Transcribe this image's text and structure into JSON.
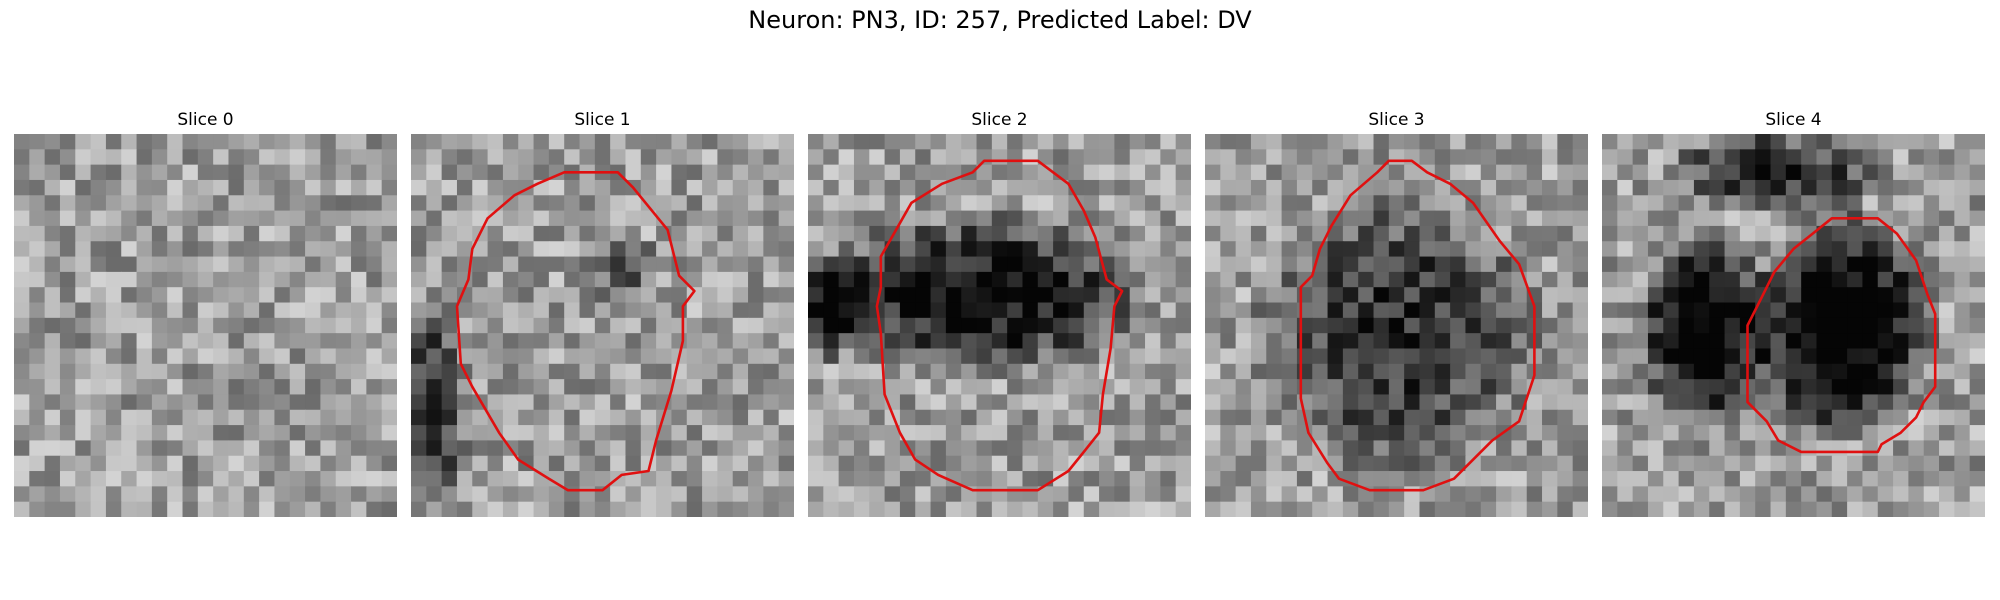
{
  "figure": {
    "title": "Neuron: PN3, ID: 257, Predicted Label: DV"
  },
  "panels": [
    {
      "title": "Slice 0",
      "has_contour": false,
      "seed": 11,
      "dark_blobs": []
    },
    {
      "title": "Slice 1",
      "has_contour": true,
      "seed": 23,
      "dark_blobs": [
        [
          0.06,
          0.72,
          0.08,
          0.25,
          0.45
        ],
        [
          0.55,
          0.35,
          0.1,
          0.08,
          0.25
        ]
      ],
      "contour": [
        [
          0.4,
          0.1
        ],
        [
          0.54,
          0.1
        ],
        [
          0.58,
          0.14
        ],
        [
          0.67,
          0.25
        ],
        [
          0.7,
          0.37
        ],
        [
          0.74,
          0.41
        ],
        [
          0.71,
          0.45
        ],
        [
          0.71,
          0.54
        ],
        [
          0.68,
          0.67
        ],
        [
          0.64,
          0.8
        ],
        [
          0.62,
          0.88
        ],
        [
          0.55,
          0.89
        ],
        [
          0.5,
          0.93
        ],
        [
          0.41,
          0.93
        ],
        [
          0.36,
          0.9
        ],
        [
          0.28,
          0.85
        ],
        [
          0.23,
          0.78
        ],
        [
          0.16,
          0.66
        ],
        [
          0.13,
          0.6
        ],
        [
          0.12,
          0.45
        ],
        [
          0.15,
          0.38
        ],
        [
          0.16,
          0.3
        ],
        [
          0.2,
          0.22
        ],
        [
          0.27,
          0.16
        ],
        [
          0.33,
          0.13
        ]
      ]
    },
    {
      "title": "Slice 2",
      "has_contour": true,
      "seed": 37,
      "dark_blobs": [
        [
          0.45,
          0.42,
          0.38,
          0.18,
          0.6
        ],
        [
          0.05,
          0.45,
          0.1,
          0.12,
          0.55
        ]
      ],
      "contour": [
        [
          0.46,
          0.07
        ],
        [
          0.6,
          0.07
        ],
        [
          0.68,
          0.13
        ],
        [
          0.72,
          0.2
        ],
        [
          0.75,
          0.27
        ],
        [
          0.78,
          0.38
        ],
        [
          0.82,
          0.41
        ],
        [
          0.8,
          0.45
        ],
        [
          0.79,
          0.56
        ],
        [
          0.77,
          0.68
        ],
        [
          0.76,
          0.78
        ],
        [
          0.72,
          0.83
        ],
        [
          0.68,
          0.88
        ],
        [
          0.6,
          0.93
        ],
        [
          0.43,
          0.93
        ],
        [
          0.34,
          0.89
        ],
        [
          0.28,
          0.85
        ],
        [
          0.24,
          0.78
        ],
        [
          0.2,
          0.68
        ],
        [
          0.19,
          0.52
        ],
        [
          0.18,
          0.45
        ],
        [
          0.19,
          0.4
        ],
        [
          0.19,
          0.32
        ],
        [
          0.23,
          0.25
        ],
        [
          0.27,
          0.18
        ],
        [
          0.35,
          0.13
        ],
        [
          0.43,
          0.1
        ]
      ]
    },
    {
      "title": "Slice 3",
      "has_contour": true,
      "seed": 53,
      "dark_blobs": [
        [
          0.5,
          0.52,
          0.32,
          0.32,
          0.45
        ]
      ],
      "contour": [
        [
          0.48,
          0.07
        ],
        [
          0.54,
          0.07
        ],
        [
          0.58,
          0.1
        ],
        [
          0.64,
          0.13
        ],
        [
          0.7,
          0.18
        ],
        [
          0.77,
          0.28
        ],
        [
          0.82,
          0.34
        ],
        [
          0.86,
          0.45
        ],
        [
          0.86,
          0.63
        ],
        [
          0.82,
          0.75
        ],
        [
          0.75,
          0.8
        ],
        [
          0.65,
          0.9
        ],
        [
          0.57,
          0.93
        ],
        [
          0.43,
          0.93
        ],
        [
          0.35,
          0.9
        ],
        [
          0.32,
          0.86
        ],
        [
          0.27,
          0.78
        ],
        [
          0.25,
          0.69
        ],
        [
          0.25,
          0.4
        ],
        [
          0.28,
          0.37
        ],
        [
          0.3,
          0.3
        ],
        [
          0.33,
          0.24
        ],
        [
          0.38,
          0.16
        ],
        [
          0.45,
          0.1
        ]
      ]
    },
    {
      "title": "Slice 4",
      "has_contour": true,
      "seed": 71,
      "dark_blobs": [
        [
          0.63,
          0.5,
          0.2,
          0.26,
          0.75
        ],
        [
          0.27,
          0.52,
          0.16,
          0.22,
          0.7
        ],
        [
          0.45,
          0.1,
          0.25,
          0.1,
          0.45
        ]
      ],
      "contour": [
        [
          0.6,
          0.22
        ],
        [
          0.72,
          0.22
        ],
        [
          0.77,
          0.26
        ],
        [
          0.82,
          0.33
        ],
        [
          0.85,
          0.42
        ],
        [
          0.87,
          0.47
        ],
        [
          0.87,
          0.66
        ],
        [
          0.84,
          0.7
        ],
        [
          0.82,
          0.74
        ],
        [
          0.78,
          0.78
        ],
        [
          0.73,
          0.81
        ],
        [
          0.72,
          0.83
        ],
        [
          0.6,
          0.83
        ],
        [
          0.52,
          0.83
        ],
        [
          0.46,
          0.8
        ],
        [
          0.43,
          0.75
        ],
        [
          0.38,
          0.7
        ],
        [
          0.38,
          0.5
        ],
        [
          0.42,
          0.42
        ],
        [
          0.45,
          0.36
        ],
        [
          0.5,
          0.3
        ],
        [
          0.55,
          0.26
        ]
      ]
    }
  ],
  "colors": {
    "contour": "#e01010",
    "background": "#ffffff"
  }
}
